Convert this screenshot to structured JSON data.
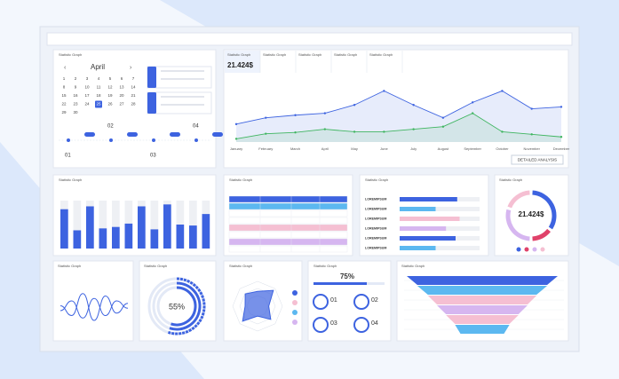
{
  "calendar": {
    "title": "Statistic Graph",
    "month": "April",
    "days": [
      1,
      2,
      3,
      4,
      5,
      6,
      7,
      8,
      9,
      10,
      11,
      12,
      13,
      14,
      15,
      16,
      17,
      18,
      19,
      20,
      21,
      22,
      23,
      24,
      25,
      26,
      27,
      28,
      29,
      30
    ],
    "selected_day": 25,
    "timeline": [
      "01",
      "02",
      "03",
      "04"
    ]
  },
  "line_panel": {
    "tabs": [
      "Statistic Graph",
      "Statistic Graph",
      "Statistic Graph",
      "Statistic Graph",
      "Statistic Graph"
    ],
    "headline": "21.424$",
    "button": "DETAILED ANALYSIS",
    "chart": {
      "type": "line",
      "categories": [
        "January",
        "February",
        "March",
        "April",
        "May",
        "June",
        "July",
        "August",
        "September",
        "October",
        "November",
        "December"
      ],
      "ylim": [
        0,
        100
      ],
      "series": [
        {
          "color": "#3d63e0",
          "values": [
            28,
            38,
            42,
            45,
            58,
            80,
            58,
            38,
            62,
            80,
            52,
            55
          ]
        },
        {
          "color": "#3fb560",
          "values": [
            5,
            13,
            15,
            20,
            16,
            16,
            20,
            24,
            45,
            16,
            12,
            8
          ]
        }
      ]
    }
  },
  "bar_panel": {
    "title": "Statistic Graph",
    "chart": {
      "type": "bar",
      "ylim": [
        0,
        100
      ],
      "color": "#3d63e0",
      "values": [
        82,
        38,
        88,
        42,
        45,
        52,
        88,
        40,
        92,
        50,
        48,
        72
      ]
    }
  },
  "table_panel": {
    "title": "Statistic Graph"
  },
  "hbar_panel": {
    "title": "Statistic Graph",
    "chart": {
      "type": "hbar",
      "xlim": [
        0,
        100
      ],
      "categories": [
        "LOREMIPSUM",
        "LOREMIPSUM",
        "LOREMIPSUM",
        "LOREMIPSUM",
        "LOREMIPSUM",
        "LOREMIPSUM"
      ],
      "values": [
        72,
        45,
        75,
        58,
        70,
        45
      ],
      "colors": [
        "#3d63e0",
        "#5cb8f0",
        "#f5bfd2",
        "#d6b6f0",
        "#3d63e0",
        "#5cb8f0"
      ]
    }
  },
  "donut_panel": {
    "title": "Statistic Graph",
    "headline": "21.424$",
    "chart": {
      "type": "pie",
      "values": [
        35,
        15,
        30,
        20
      ],
      "colors": [
        "#3d63e0",
        "#e0426a",
        "#d6b6f0",
        "#f5bfd2"
      ]
    }
  },
  "wave_panel": {
    "title": "Statistic Graph",
    "chart": {
      "type": "line",
      "ylim": [
        0,
        100
      ],
      "series": [
        {
          "color": "#3d63e0",
          "values": [
            50,
            30,
            75,
            20,
            70,
            35,
            55
          ]
        },
        {
          "color": "#3d63e0",
          "values": [
            40,
            60,
            25,
            65,
            30,
            60,
            45
          ]
        }
      ]
    }
  },
  "ring_panel": {
    "title": "Statistic Graph",
    "value": 55,
    "value_label": "55%"
  },
  "radar_panel": {
    "title": "Statistic Graph",
    "chart": {
      "type": "radar",
      "ylim": [
        0,
        100
      ],
      "values": [
        60,
        90,
        45,
        75,
        40,
        85,
        50,
        70
      ]
    }
  },
  "progress_panel": {
    "title": "Statistic Graph",
    "value": 75,
    "value_label": "75%",
    "items": [
      "01",
      "02",
      "03",
      "04"
    ]
  },
  "funnel_panel": {
    "title": "Statistic Graph",
    "chart": {
      "type": "funnel",
      "values": [
        100,
        86,
        72,
        60,
        48,
        36
      ],
      "colors": [
        "#3d63e0",
        "#5cb8f0",
        "#f5bfd2",
        "#d6b6f0",
        "#f5bfd2",
        "#5cb8f0"
      ]
    }
  }
}
